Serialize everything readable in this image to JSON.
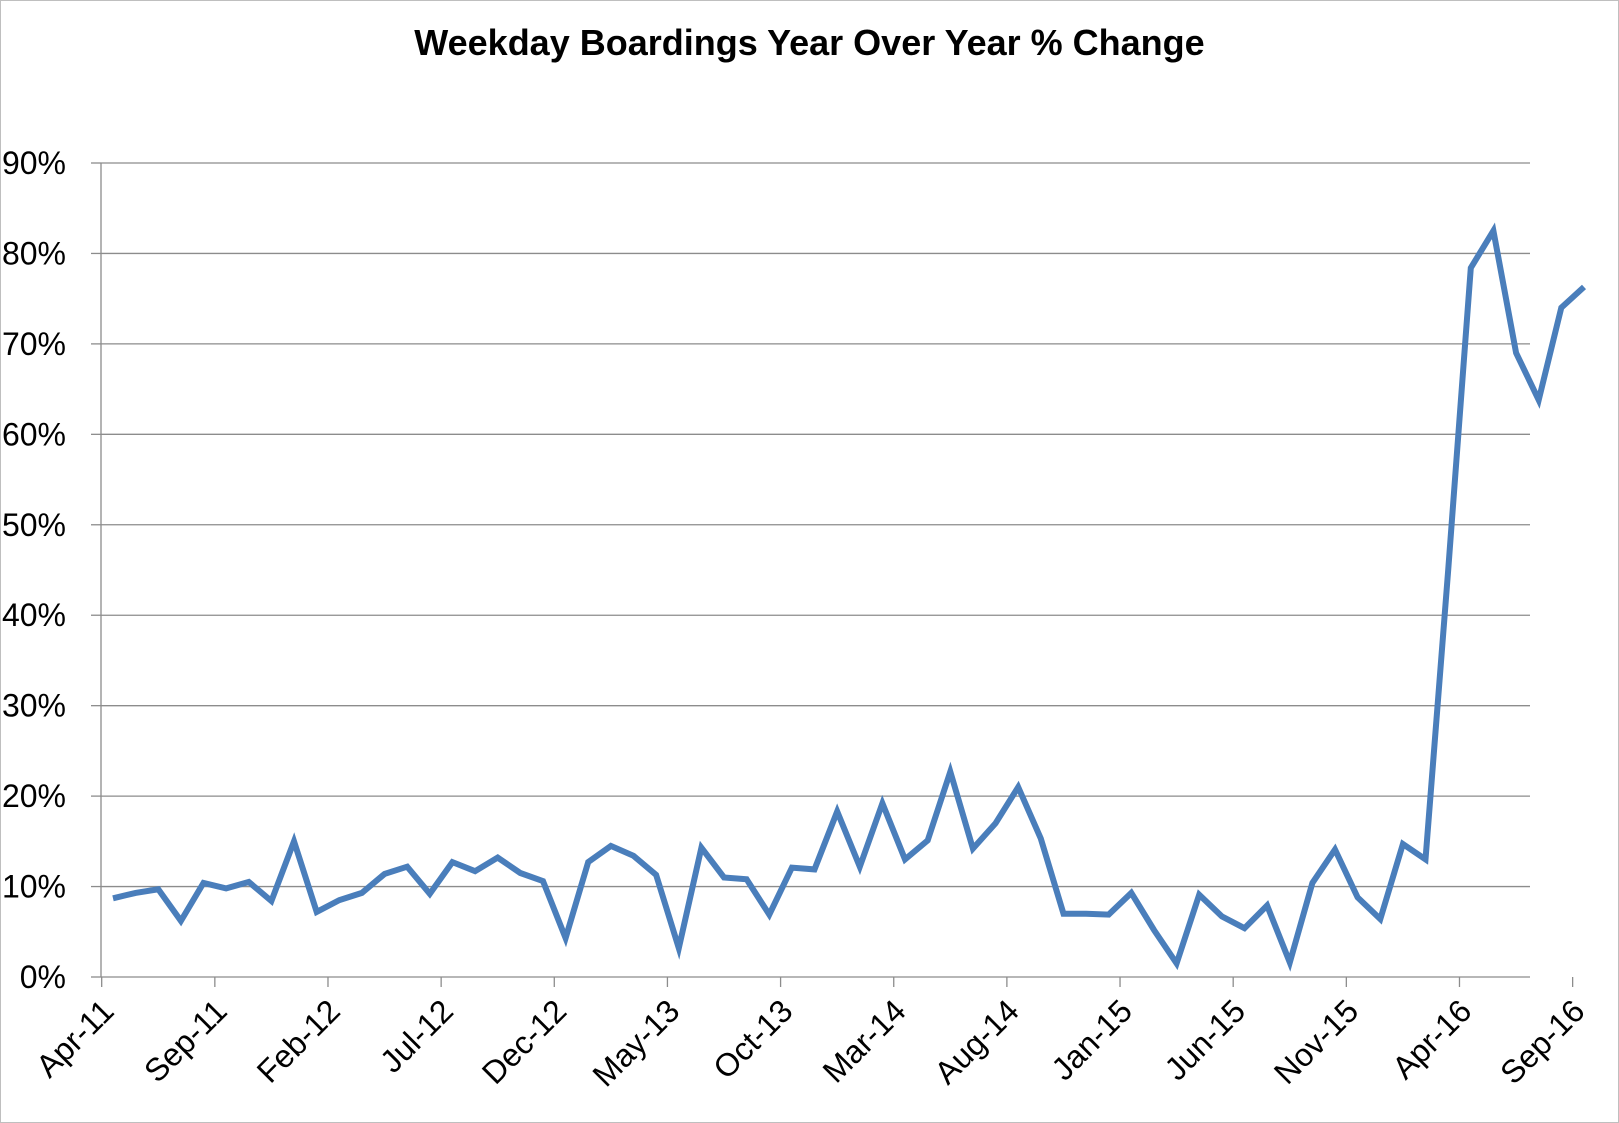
{
  "chart_data": {
    "type": "line",
    "title": "Weekday Boardings Year Over Year % Change",
    "xlabel": "",
    "ylabel": "",
    "ylim": [
      0,
      90
    ],
    "y_ticks": [
      "0%",
      "10%",
      "20%",
      "30%",
      "40%",
      "50%",
      "60%",
      "70%",
      "80%",
      "90%"
    ],
    "y_tick_values": [
      0,
      10,
      20,
      30,
      40,
      50,
      60,
      70,
      80,
      90
    ],
    "x_ticks": [
      "Apr-11",
      "Sep-11",
      "Feb-12",
      "Jul-12",
      "Dec-12",
      "May-13",
      "Oct-13",
      "Mar-14",
      "Aug-14",
      "Jan-15",
      "Jun-15",
      "Nov-15",
      "Apr-16",
      "Sep-16"
    ],
    "grid": "horizontal",
    "legend": "none",
    "color": "#4a7ebb",
    "x": [
      "Apr-11",
      "May-11",
      "Jun-11",
      "Jul-11",
      "Aug-11",
      "Sep-11",
      "Oct-11",
      "Nov-11",
      "Dec-11",
      "Jan-12",
      "Feb-12",
      "Mar-12",
      "Apr-12",
      "May-12",
      "Jun-12",
      "Jul-12",
      "Aug-12",
      "Sep-12",
      "Oct-12",
      "Nov-12",
      "Dec-12",
      "Jan-13",
      "Feb-13",
      "Mar-13",
      "Apr-13",
      "May-13",
      "Jun-13",
      "Jul-13",
      "Aug-13",
      "Sep-13",
      "Oct-13",
      "Nov-13",
      "Dec-13",
      "Jan-14",
      "Feb-14",
      "Mar-14",
      "Apr-14",
      "May-14",
      "Jun-14",
      "Jul-14",
      "Aug-14",
      "Sep-14",
      "Oct-14",
      "Nov-14",
      "Dec-14",
      "Jan-15",
      "Feb-15",
      "Mar-15",
      "Apr-15",
      "May-15",
      "Jun-15",
      "Jul-15",
      "Aug-15",
      "Sep-15",
      "Oct-15",
      "Nov-15",
      "Dec-15",
      "Jan-16",
      "Feb-16",
      "Mar-16",
      "Apr-16",
      "May-16",
      "Jun-16",
      "Jul-16",
      "Aug-16",
      "Sep-16"
    ],
    "series": [
      {
        "values": [
          8.7,
          9.3,
          9.7,
          6.2,
          10.4,
          9.8,
          10.5,
          8.4,
          15.0,
          7.2,
          8.5,
          9.3,
          11.4,
          12.2,
          9.2,
          12.7,
          11.7,
          13.2,
          11.5,
          10.6,
          4.3,
          12.7,
          14.5,
          13.4,
          11.3,
          3.2,
          14.3,
          11.0,
          10.8,
          6.9,
          12.1,
          11.9,
          18.3,
          12.2,
          19.2,
          13.0,
          15.1,
          22.7,
          14.2,
          17.0,
          21.0,
          15.3,
          7.0,
          7.0,
          6.9,
          9.3,
          5.2,
          1.5,
          9.1,
          6.7,
          5.4,
          7.9,
          1.6,
          10.4,
          14.1,
          8.8,
          6.4,
          14.7,
          13.0,
          45.0,
          78.4,
          82.5,
          69.0,
          63.8,
          74.0,
          76.3
        ]
      }
    ]
  }
}
